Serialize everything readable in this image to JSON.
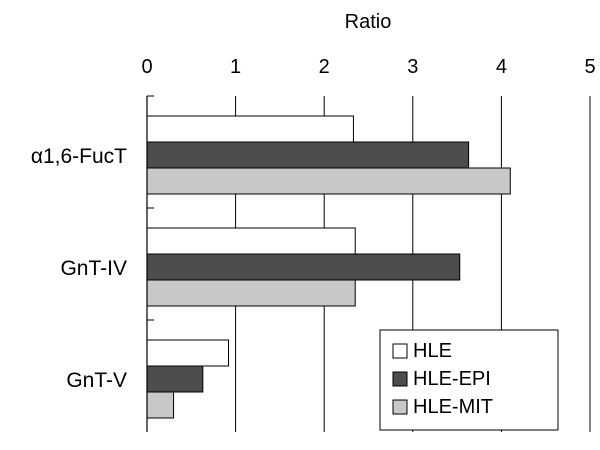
{
  "chart_data": {
    "type": "bar",
    "orientation": "horizontal",
    "xlabel": "Ratio",
    "xlim": [
      0,
      5
    ],
    "x_ticks": [
      "0",
      "1",
      "2",
      "3",
      "4",
      "5"
    ],
    "grid": "vertical",
    "legend_position": "bottom-right",
    "categories": [
      "α1,6-FucT",
      "GnT-IV",
      "GnT-V"
    ],
    "series": [
      {
        "name": "HLE",
        "color": "#ffffff",
        "values": [
          2.33,
          2.35,
          0.92
        ]
      },
      {
        "name": "HLE-EPI",
        "color": "#4d4d4d",
        "values": [
          3.63,
          3.53,
          0.63
        ]
      },
      {
        "name": "HLE-MIT",
        "color": "#c8c8c8",
        "values": [
          4.1,
          2.35,
          0.3
        ]
      }
    ]
  }
}
